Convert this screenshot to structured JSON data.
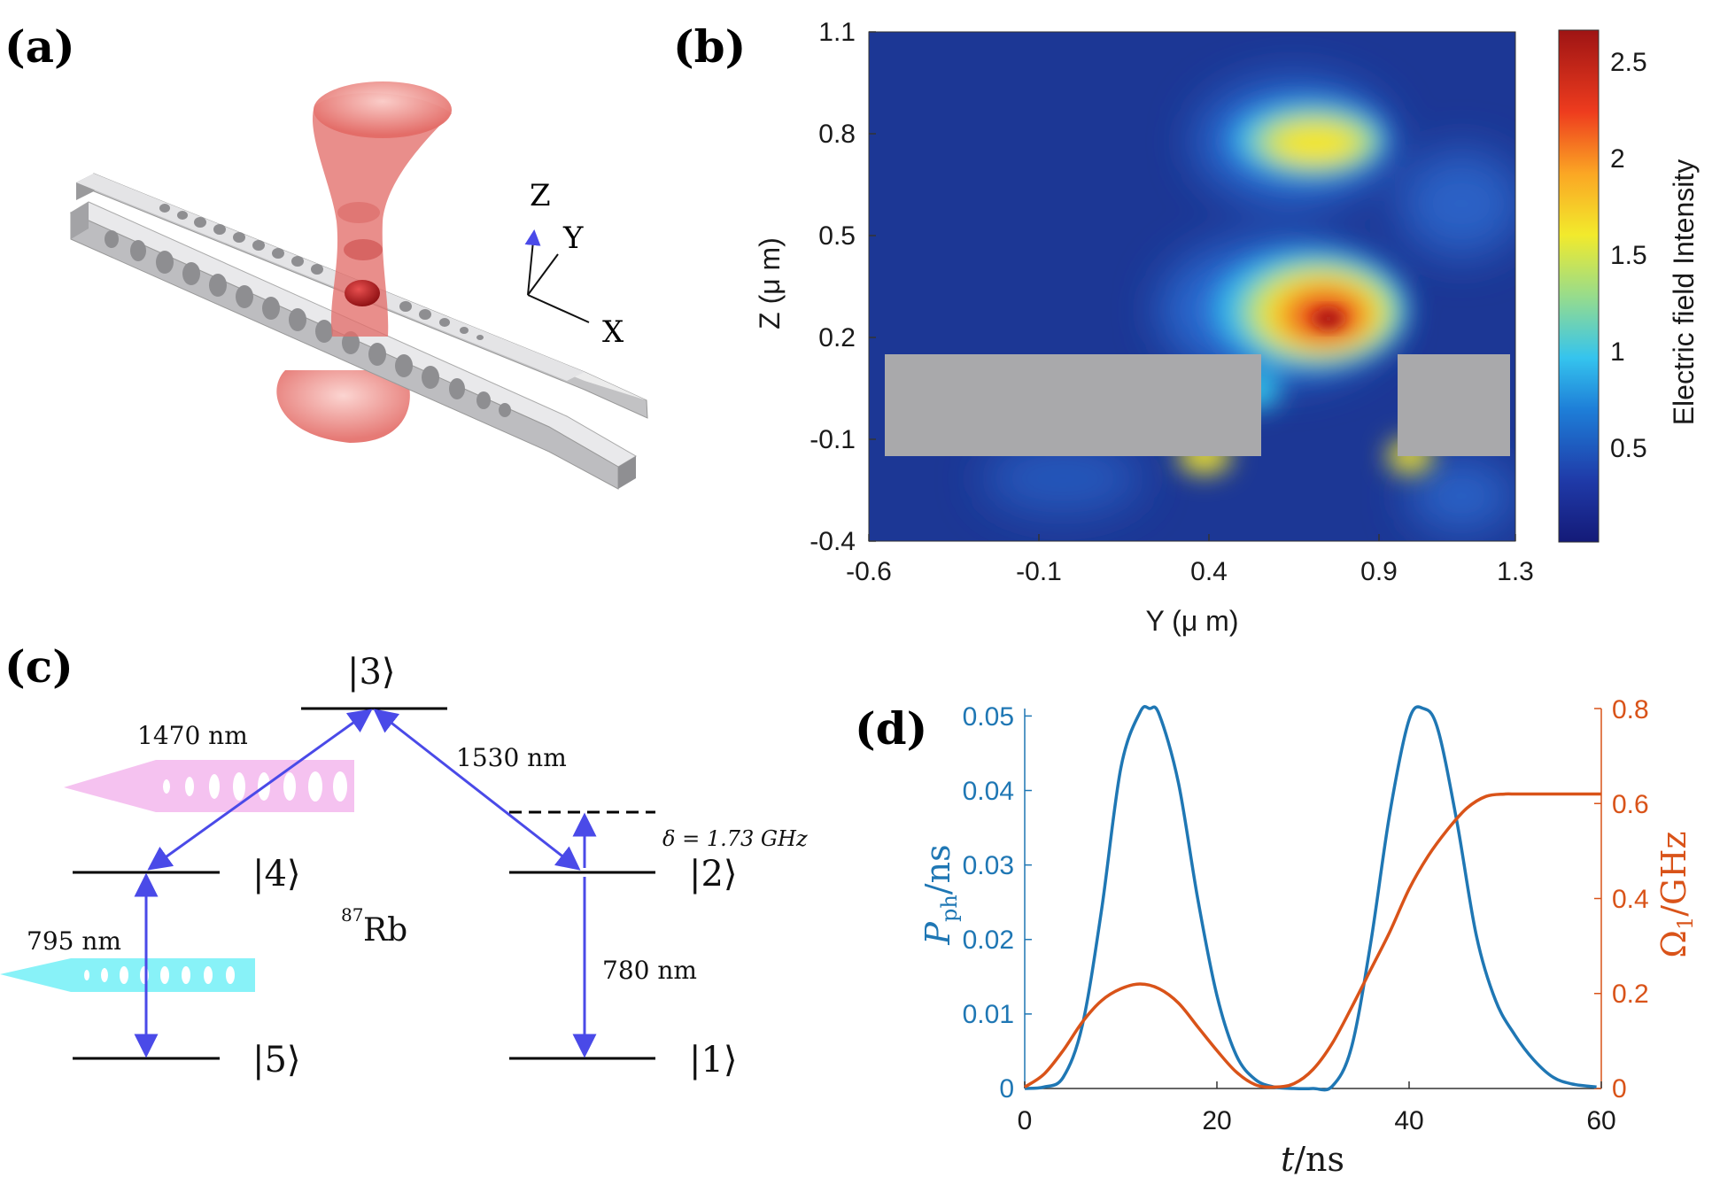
{
  "panels": {
    "a": {
      "label": "(a)",
      "axis_labels": {
        "z": "Z",
        "y": "Y",
        "x": "X"
      }
    },
    "b": {
      "label": "(b)",
      "title": "",
      "xlabel": "Y (μ m)",
      "ylabel": "Z (μ m)",
      "xticks": [
        "-0.6",
        "-0.1",
        "0.4",
        "0.9",
        "1.3"
      ],
      "yticks": [
        "-0.4",
        "-0.1",
        "0.2",
        "0.5",
        "0.8",
        "1.1"
      ],
      "colorbar_label": "Electric field Intensity",
      "colorbar_ticks": [
        "0.5",
        "1",
        "1.5",
        "2",
        "2.5"
      ]
    },
    "c": {
      "label": "(c)",
      "levels": {
        "l3": "|3⟩",
        "l4": "|4⟩",
        "l2": "|2⟩",
        "l5": "|5⟩",
        "l1": "|1⟩"
      },
      "wavelengths": {
        "w1470": "1470 nm",
        "w1530": "1530 nm",
        "w795": "795 nm",
        "w780": "780 nm"
      },
      "detuning": "δ = 1.73 GHz",
      "isotope_mass": "87",
      "isotope": "Rb"
    },
    "d": {
      "label": "(d)",
      "xlabel_italic": "t",
      "xlabel_rest": "/ns",
      "ylabel_left_italic": "P",
      "ylabel_left_sub": "ph",
      "ylabel_left_rest": "/ns",
      "ylabel_right_main": "Ω",
      "ylabel_right_sub": "1",
      "ylabel_right_rest": "/GHz",
      "xticks": [
        "0",
        "20",
        "40",
        "60"
      ],
      "yticks_left": [
        "0",
        "0.01",
        "0.02",
        "0.03",
        "0.04",
        "0.05"
      ],
      "yticks_right": [
        "0",
        "0.2",
        "0.4",
        "0.6",
        "0.8"
      ]
    }
  },
  "colors": {
    "blue": "#1f77b4",
    "orange": "#d95319",
    "arrow": "#4a4ae8",
    "slab": "#a9a9ab",
    "pink": "#f5c2f0",
    "cyan": "#88f2f8"
  },
  "chart_data": [
    {
      "id": "b",
      "type": "heatmap",
      "title": "",
      "xlabel": "Y (μ m)",
      "ylabel": "Z (μ m)",
      "xlim": [
        -0.65,
        1.3
      ],
      "ylim": [
        -0.4,
        1.1
      ],
      "colorbar_range": [
        0.05,
        2.7
      ],
      "hotspots": [
        {
          "y": 0.78,
          "z": 0.25,
          "peak": 2.6,
          "label": "antinode between waveguides"
        },
        {
          "y": 0.64,
          "z": 0.77,
          "peak": 1.6,
          "label": "upper lobe"
        },
        {
          "y": 0.38,
          "z": -0.18,
          "peak": 1.3
        },
        {
          "y": 0.98,
          "z": -0.16,
          "peak": 1.2
        }
      ],
      "structures": [
        {
          "name": "left slab",
          "y_range": [
            -0.6,
            0.52
          ],
          "z_range": [
            -0.14,
            0.16
          ]
        },
        {
          "name": "right slab",
          "y_range": [
            0.95,
            1.28
          ],
          "z_range": [
            -0.14,
            0.16
          ]
        }
      ]
    },
    {
      "id": "d",
      "type": "line",
      "xlabel": "t/ns",
      "ylabel_left": "P_ph/ns",
      "ylabel_right": "Ω_1/GHz",
      "xlim": [
        0,
        60
      ],
      "ylim_left": [
        0,
        0.051
      ],
      "ylim_right": [
        0,
        0.8
      ],
      "series": [
        {
          "name": "P_ph",
          "axis": "left",
          "x": [
            0,
            2,
            4,
            6,
            8,
            10,
            12,
            13,
            14,
            16,
            18,
            20,
            22,
            24,
            26,
            28,
            30,
            32,
            34,
            36,
            38,
            40,
            41.5,
            43,
            45,
            47,
            49,
            51,
            53,
            55,
            57,
            59.5
          ],
          "y": [
            0,
            0.0002,
            0.0015,
            0.0085,
            0.024,
            0.043,
            0.0505,
            0.051,
            0.0502,
            0.041,
            0.0255,
            0.0125,
            0.0045,
            0.0012,
            0.0002,
            0,
            0,
            0.0003,
            0.0055,
            0.0195,
            0.037,
            0.0495,
            0.051,
            0.0482,
            0.0356,
            0.0205,
            0.0118,
            0.0072,
            0.0038,
            0.0015,
            0.0006,
            0.0002
          ]
        },
        {
          "name": "Ω_1",
          "axis": "right",
          "x": [
            0,
            2,
            4,
            6,
            8,
            10,
            12,
            14,
            16,
            18,
            20,
            22,
            24,
            26,
            28,
            30,
            32,
            34,
            36,
            38,
            40,
            42,
            44,
            46,
            48,
            50,
            51,
            55,
            60
          ],
          "y": [
            0.003,
            0.03,
            0.08,
            0.14,
            0.185,
            0.21,
            0.22,
            0.21,
            0.18,
            0.13,
            0.08,
            0.035,
            0.008,
            0.003,
            0.01,
            0.04,
            0.095,
            0.17,
            0.25,
            0.33,
            0.42,
            0.49,
            0.545,
            0.59,
            0.615,
            0.62,
            0.62,
            0.62,
            0.62
          ]
        }
      ]
    }
  ]
}
